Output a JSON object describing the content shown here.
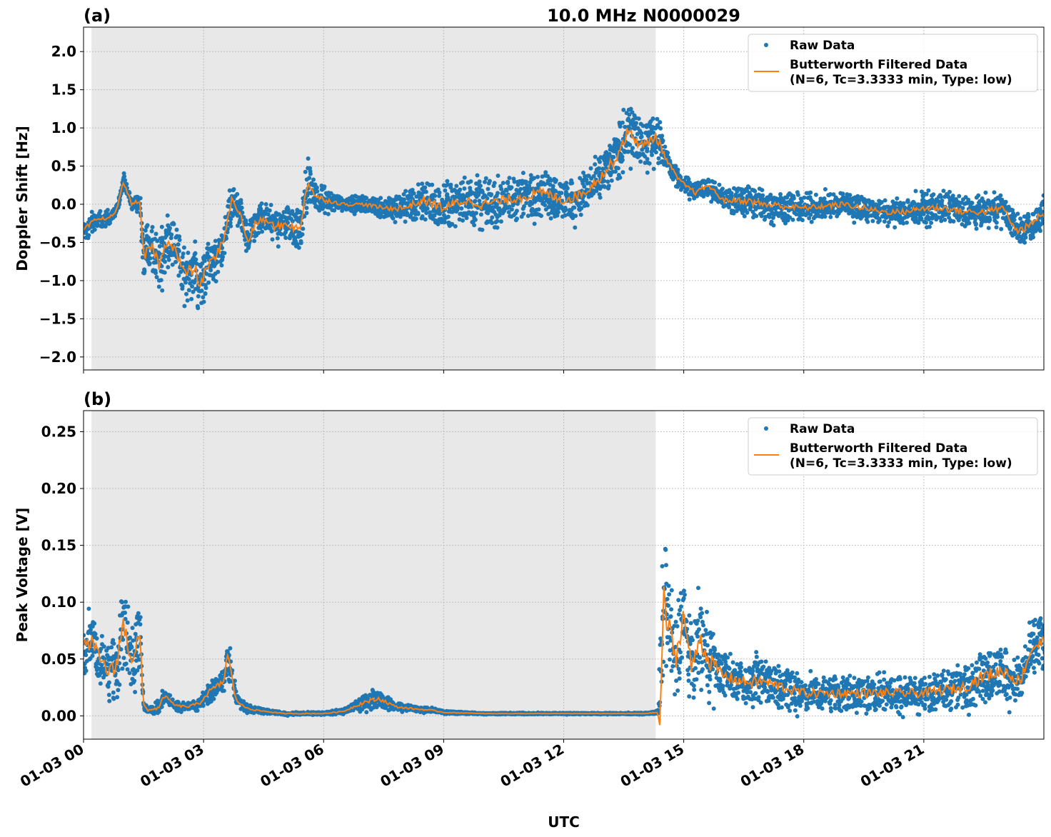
{
  "chart_data": [
    {
      "type": "scatter",
      "panel_label": "(a)",
      "title": "10.0 MHz N0000029",
      "ylabel": "Doppler Shift [Hz]",
      "xlabel": "",
      "xlim_hours": [
        0,
        24
      ],
      "ylim": [
        -2.17,
        2.32
      ],
      "y_ticks": [
        -2.0,
        -1.5,
        -1.0,
        -0.5,
        0.0,
        0.5,
        1.0,
        1.5,
        2.0
      ],
      "y_tick_labels": [
        "−2.0",
        "−1.5",
        "−1.0",
        "−0.5",
        "0.0",
        "0.5",
        "1.0",
        "1.5",
        "2.0"
      ],
      "grid": true,
      "night_shading_hours": [
        0.2,
        14.3
      ],
      "legend": {
        "position": "top-right",
        "entries": [
          {
            "label": "Raw Data",
            "kind": "marker",
            "color": "#1f77b4"
          },
          {
            "label": "Butterworth Filtered Data",
            "label2": "(N=6, Tc=3.3333 min, Type: low)",
            "kind": "line",
            "color": "#ff7f0e"
          }
        ]
      },
      "series": [
        {
          "name": "Butterworth Filtered Data",
          "color": "#ff7f0e",
          "x_hours": [
            0,
            0.3,
            0.6,
            0.8,
            1.0,
            1.2,
            1.4,
            1.5,
            1.7,
            1.9,
            2.1,
            2.3,
            2.5,
            2.8,
            2.9,
            3.1,
            3.3,
            3.5,
            3.7,
            3.9,
            4.1,
            4.3,
            4.5,
            4.8,
            5.1,
            5.4,
            5.6,
            5.8,
            6.1,
            6.5,
            7.0,
            7.5,
            8.0,
            8.5,
            9.0,
            9.5,
            10.0,
            10.5,
            11.0,
            11.5,
            12.0,
            12.5,
            13.0,
            13.3,
            13.6,
            14.0,
            14.3,
            14.6,
            14.9,
            15.3,
            15.6,
            16.0,
            16.5,
            17.0,
            18.0,
            19.0,
            20.0,
            20.5,
            21.0,
            21.5,
            22.0,
            22.5,
            23.0,
            23.3,
            23.6,
            24.0
          ],
          "y": [
            -0.35,
            -0.2,
            -0.18,
            -0.12,
            0.3,
            0.0,
            0.05,
            -0.7,
            -0.55,
            -0.8,
            -0.45,
            -0.6,
            -0.9,
            -0.85,
            -1.1,
            -0.8,
            -0.7,
            -0.45,
            0.05,
            -0.1,
            -0.5,
            -0.25,
            -0.2,
            -0.3,
            -0.25,
            -0.35,
            0.3,
            0.1,
            0.05,
            0.0,
            0.0,
            -0.05,
            -0.05,
            0.05,
            -0.05,
            0.05,
            0.0,
            0.05,
            0.1,
            0.15,
            0.05,
            0.15,
            0.4,
            0.6,
            0.95,
            0.75,
            0.9,
            0.55,
            0.3,
            0.15,
            0.25,
            0.05,
            0.05,
            0.0,
            -0.05,
            0.0,
            -0.1,
            -0.1,
            -0.05,
            -0.05,
            -0.1,
            -0.1,
            -0.05,
            -0.35,
            -0.3,
            -0.1
          ]
        },
        {
          "name": "Raw Data",
          "color": "#1f77b4",
          "x_hours": [
            0,
            0.3,
            0.6,
            0.8,
            1.0,
            1.2,
            1.4,
            1.5,
            1.7,
            1.9,
            2.1,
            2.3,
            2.5,
            2.8,
            2.9,
            3.1,
            3.3,
            3.5,
            3.7,
            3.9,
            4.1,
            4.3,
            4.5,
            4.8,
            5.1,
            5.4,
            5.6,
            5.8,
            6.1,
            6.5,
            7.0,
            7.5,
            8.0,
            8.5,
            9.0,
            9.5,
            10.0,
            10.5,
            11.0,
            11.5,
            12.0,
            12.5,
            13.0,
            13.3,
            13.6,
            14.0,
            14.3,
            14.6,
            14.9,
            15.3,
            15.6,
            16.0,
            16.5,
            17.0,
            18.0,
            19.0,
            20.0,
            20.5,
            21.0,
            21.5,
            22.0,
            22.5,
            23.0,
            23.3,
            23.6,
            24.0
          ],
          "y_center": [
            -0.35,
            -0.2,
            -0.18,
            -0.12,
            0.3,
            0.0,
            0.05,
            -0.7,
            -0.55,
            -0.8,
            -0.45,
            -0.6,
            -0.9,
            -0.85,
            -1.1,
            -0.8,
            -0.7,
            -0.45,
            0.05,
            -0.1,
            -0.5,
            -0.25,
            -0.2,
            -0.3,
            -0.25,
            -0.35,
            0.3,
            0.1,
            0.05,
            0.0,
            0.0,
            -0.05,
            -0.05,
            0.05,
            -0.05,
            0.05,
            0.0,
            0.05,
            0.1,
            0.15,
            0.05,
            0.15,
            0.4,
            0.6,
            0.95,
            0.75,
            0.9,
            0.55,
            0.3,
            0.15,
            0.25,
            0.05,
            0.05,
            0.0,
            -0.05,
            0.0,
            -0.1,
            -0.1,
            -0.05,
            -0.05,
            -0.1,
            -0.1,
            -0.05,
            -0.35,
            -0.3,
            -0.1
          ],
          "y_spread": [
            0.3,
            0.15,
            0.15,
            0.1,
            0.15,
            0.15,
            0.15,
            0.5,
            0.5,
            0.55,
            0.45,
            0.5,
            0.5,
            0.55,
            0.5,
            0.45,
            0.4,
            0.4,
            0.35,
            0.3,
            0.35,
            0.3,
            0.3,
            0.35,
            0.35,
            0.45,
            0.45,
            0.3,
            0.2,
            0.15,
            0.15,
            0.2,
            0.3,
            0.4,
            0.45,
            0.45,
            0.45,
            0.45,
            0.45,
            0.45,
            0.45,
            0.45,
            0.45,
            0.5,
            0.55,
            0.5,
            0.45,
            0.2,
            0.2,
            0.2,
            0.2,
            0.2,
            0.3,
            0.35,
            0.25,
            0.25,
            0.25,
            0.25,
            0.3,
            0.3,
            0.3,
            0.3,
            0.3,
            0.3,
            0.35,
            0.25
          ]
        }
      ]
    },
    {
      "type": "scatter",
      "panel_label": "(b)",
      "title": "",
      "ylabel": "Peak Voltage [V]",
      "xlabel": "UTC",
      "xlim_hours": [
        0,
        24
      ],
      "ylim": [
        -0.0205,
        0.2685
      ],
      "y_ticks": [
        0.0,
        0.05,
        0.1,
        0.15,
        0.2,
        0.25
      ],
      "y_tick_labels": [
        "0.00",
        "0.05",
        "0.10",
        "0.15",
        "0.20",
        "0.25"
      ],
      "x_ticks_hours": [
        0,
        3,
        6,
        9,
        12,
        15,
        18,
        21
      ],
      "x_tick_labels": [
        "01-03 00",
        "01-03 03",
        "01-03 06",
        "01-03 09",
        "01-03 12",
        "01-03 15",
        "01-03 18",
        "01-03 21"
      ],
      "grid": true,
      "night_shading_hours": [
        0.2,
        14.3
      ],
      "legend": {
        "position": "top-right",
        "entries": [
          {
            "label": "Raw Data",
            "kind": "marker",
            "color": "#1f77b4"
          },
          {
            "label": "Butterworth Filtered Data",
            "label2": "(N=6, Tc=3.3333 min, Type: low)",
            "kind": "line",
            "color": "#ff7f0e"
          }
        ]
      },
      "series": [
        {
          "name": "Butterworth Filtered Data",
          "color": "#ff7f0e",
          "x_hours": [
            0,
            0.2,
            0.4,
            0.6,
            0.8,
            0.9,
            1.0,
            1.2,
            1.4,
            1.5,
            1.6,
            1.9,
            2.0,
            2.3,
            2.6,
            2.9,
            3.1,
            3.3,
            3.5,
            3.6,
            3.8,
            4.0,
            4.3,
            5.0,
            6.0,
            6.5,
            7.0,
            7.4,
            7.8,
            8.3,
            8.7,
            9.0,
            10.0,
            11.0,
            12.0,
            13.0,
            14.0,
            14.35,
            14.4,
            14.5,
            14.6,
            14.8,
            15.0,
            15.2,
            15.4,
            15.6,
            16.0,
            16.5,
            17.0,
            17.5,
            18.0,
            19.0,
            20.0,
            21.0,
            22.0,
            22.5,
            23.0,
            23.4,
            23.7,
            24.0
          ],
          "y": [
            0.06,
            0.065,
            0.05,
            0.04,
            0.04,
            0.065,
            0.08,
            0.05,
            0.07,
            0.01,
            0.005,
            0.007,
            0.018,
            0.009,
            0.008,
            0.011,
            0.02,
            0.025,
            0.03,
            0.055,
            0.015,
            0.008,
            0.005,
            0.002,
            0.002,
            0.004,
            0.012,
            0.015,
            0.008,
            0.006,
            0.005,
            0.003,
            0.002,
            0.002,
            0.002,
            0.002,
            0.002,
            0.003,
            -0.008,
            0.1,
            0.08,
            0.05,
            0.09,
            0.04,
            0.07,
            0.05,
            0.035,
            0.03,
            0.03,
            0.025,
            0.02,
            0.02,
            0.02,
            0.02,
            0.025,
            0.035,
            0.04,
            0.03,
            0.06,
            0.065
          ]
        },
        {
          "name": "Raw Data",
          "color": "#1f77b4",
          "x_hours": [
            0,
            0.2,
            0.4,
            0.6,
            0.8,
            0.9,
            1.0,
            1.2,
            1.4,
            1.5,
            1.6,
            1.9,
            2.0,
            2.3,
            2.6,
            2.9,
            3.1,
            3.3,
            3.5,
            3.6,
            3.8,
            4.0,
            4.3,
            5.0,
            6.0,
            6.5,
            7.0,
            7.4,
            7.8,
            8.3,
            8.7,
            9.0,
            10.0,
            11.0,
            12.0,
            13.0,
            14.0,
            14.35,
            14.4,
            14.5,
            14.6,
            14.8,
            15.0,
            15.2,
            15.4,
            15.6,
            16.0,
            16.5,
            17.0,
            17.5,
            18.0,
            19.0,
            20.0,
            21.0,
            22.0,
            22.5,
            23.0,
            23.4,
            23.7,
            24.0
          ],
          "y_center": [
            0.06,
            0.065,
            0.05,
            0.04,
            0.04,
            0.065,
            0.08,
            0.05,
            0.07,
            0.01,
            0.005,
            0.007,
            0.018,
            0.009,
            0.008,
            0.011,
            0.02,
            0.025,
            0.03,
            0.055,
            0.015,
            0.008,
            0.005,
            0.002,
            0.002,
            0.004,
            0.012,
            0.015,
            0.008,
            0.006,
            0.005,
            0.003,
            0.002,
            0.002,
            0.002,
            0.002,
            0.002,
            0.003,
            0.02,
            0.1,
            0.08,
            0.05,
            0.09,
            0.04,
            0.07,
            0.05,
            0.035,
            0.03,
            0.03,
            0.025,
            0.02,
            0.02,
            0.02,
            0.02,
            0.025,
            0.035,
            0.04,
            0.03,
            0.06,
            0.065
          ],
          "y_spread": [
            0.04,
            0.04,
            0.04,
            0.04,
            0.05,
            0.06,
            0.06,
            0.05,
            0.06,
            0.005,
            0.004,
            0.01,
            0.01,
            0.006,
            0.006,
            0.008,
            0.015,
            0.015,
            0.015,
            0.03,
            0.01,
            0.006,
            0.004,
            0.002,
            0.002,
            0.003,
            0.01,
            0.012,
            0.006,
            0.004,
            0.003,
            0.002,
            0.001,
            0.001,
            0.001,
            0.001,
            0.001,
            0.002,
            0.05,
            0.1,
            0.08,
            0.06,
            0.06,
            0.05,
            0.06,
            0.05,
            0.03,
            0.03,
            0.03,
            0.03,
            0.025,
            0.025,
            0.025,
            0.025,
            0.03,
            0.035,
            0.04,
            0.03,
            0.04,
            0.04
          ]
        }
      ]
    }
  ]
}
